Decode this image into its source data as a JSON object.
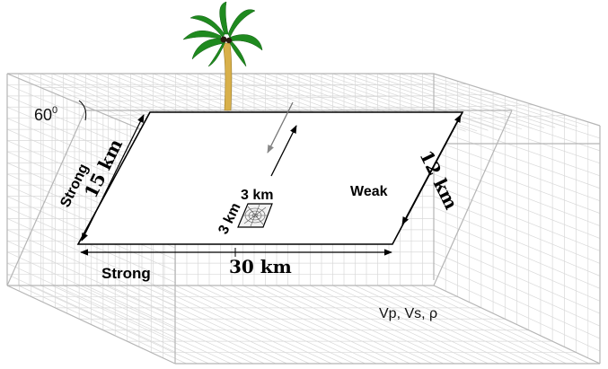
{
  "labels": {
    "dip_angle": "60",
    "dip_degree": "0",
    "strong_left": "Strong",
    "dim_15km": "15 km",
    "dim_3km_top": "3 km",
    "dim_3km_side": "3 km",
    "weak_right": "Weak",
    "dim_12km": "12 km",
    "strong_bottom": "Strong",
    "dim_30km": "30 km",
    "material": "Vp, Vs, ρ"
  },
  "colors": {
    "grid": "#d9d9d9",
    "frame": "#b5b5b5",
    "fault_edge": "#000000",
    "palm_leaves": "#1f8a1f",
    "palm_trunk": "#d8b04a"
  },
  "icons": {
    "tree": "palm-tree-icon",
    "hypocenter": "nucleation-patch-icon",
    "slip": "slip-direction-arrows-icon"
  }
}
